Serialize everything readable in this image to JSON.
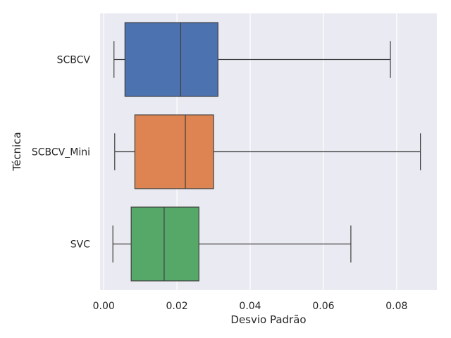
{
  "chart_data": {
    "type": "boxplot",
    "orientation": "horizontal",
    "xlabel": "Desvio Padrão",
    "ylabel": "Técnica",
    "xlim": [
      -0.001,
      0.091
    ],
    "x_ticks": [
      0.0,
      0.02,
      0.04,
      0.06,
      0.08
    ],
    "x_tick_labels": [
      "0.00",
      "0.02",
      "0.04",
      "0.06",
      "0.08"
    ],
    "grid": true,
    "background": "#eaeaf2",
    "categories": [
      "SCBCV",
      "SCBCV_Mini",
      "SVC"
    ],
    "series": [
      {
        "category": "SCBCV",
        "whislo": 0.0028,
        "q1": 0.0058,
        "median": 0.021,
        "q3": 0.0312,
        "whishi": 0.0783,
        "color": "#4c72b0"
      },
      {
        "category": "SCBCV_Mini",
        "whislo": 0.003,
        "q1": 0.0085,
        "median": 0.0223,
        "q3": 0.03,
        "whishi": 0.0865,
        "color": "#dd8452"
      },
      {
        "category": "SVC",
        "whislo": 0.0025,
        "q1": 0.0075,
        "median": 0.0165,
        "q3": 0.026,
        "whishi": 0.0675,
        "color": "#55a868"
      }
    ]
  }
}
